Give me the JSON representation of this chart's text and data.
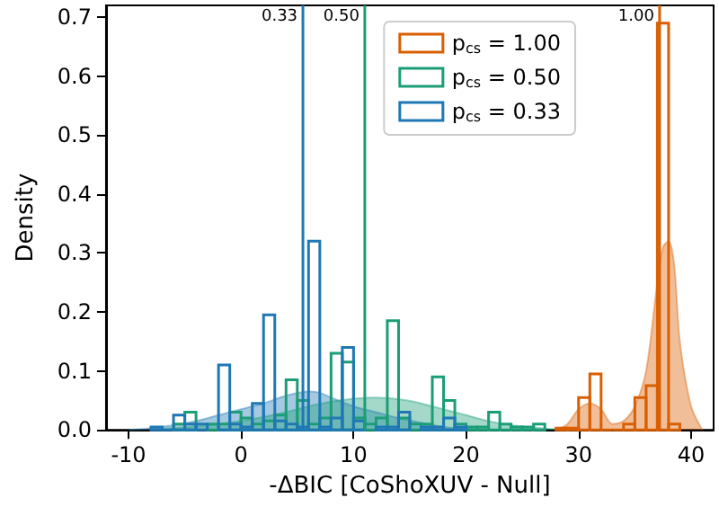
{
  "chart_data": {
    "type": "histogram",
    "xlabel": "-ΔBIC [CoShoXUV - Null]",
    "ylabel": "Density",
    "xlim": [
      -12,
      42
    ],
    "xticks": [
      -10,
      0,
      10,
      20,
      30,
      40
    ],
    "ylim": [
      0,
      0.72
    ],
    "yticks": [
      {
        "value": 0,
        "label": "0.0"
      },
      0.1,
      0.2,
      0.3,
      0.4,
      0.5,
      0.6,
      0.7
    ],
    "grid": false,
    "legend": "top right",
    "series": [
      {
        "type": "area",
        "color": "#1f78b4",
        "x": [
          -10,
          -8,
          -6,
          -4,
          -2,
          0,
          2,
          4,
          6,
          7,
          8,
          10,
          12,
          14,
          16,
          18,
          20,
          22
        ],
        "values": [
          0,
          0.003,
          0.008,
          0.015,
          0.025,
          0.035,
          0.045,
          0.058,
          0.065,
          0.063,
          0.055,
          0.04,
          0.03,
          0.02,
          0.012,
          0.005,
          0.002,
          0
        ]
      },
      {
        "type": "area",
        "color": "#1b9e77",
        "x": [
          -8,
          -6,
          -4,
          -2,
          0,
          2,
          4,
          6,
          8,
          10,
          12,
          14,
          16,
          18,
          20,
          22,
          24,
          26,
          28,
          30
        ],
        "values": [
          0,
          0.003,
          0.006,
          0.01,
          0.015,
          0.022,
          0.03,
          0.04,
          0.048,
          0.053,
          0.055,
          0.052,
          0.045,
          0.035,
          0.025,
          0.015,
          0.008,
          0.004,
          0.001,
          0
        ]
      },
      {
        "type": "area",
        "color": "#d95f02",
        "x": [
          28,
          29,
          30,
          31,
          32,
          33,
          34,
          35,
          36,
          37,
          37.5,
          38,
          38.5,
          39,
          40,
          41
        ],
        "values": [
          0,
          0.01,
          0.035,
          0.045,
          0.035,
          0.01,
          0.015,
          0.04,
          0.1,
          0.25,
          0.31,
          0.32,
          0.28,
          0.15,
          0.04,
          0
        ]
      },
      {
        "name": "p$_{cs}$ = 1.00",
        "color": "#d95f02",
        "bins": [
          28,
          29,
          30,
          31,
          32,
          33,
          34,
          35,
          36,
          37,
          38,
          39
        ],
        "values": [
          0.003,
          0.003,
          0.055,
          0.095,
          0,
          0,
          0.01,
          0.055,
          0.075,
          0.69,
          0.01
        ]
      },
      {
        "name": "p$_{cs}$ = 0.50",
        "color": "#1b9e77",
        "bins": [
          -6,
          -5,
          -4,
          -3,
          -2,
          -1,
          0,
          1,
          2,
          3,
          4,
          5,
          6,
          7,
          8,
          9,
          10,
          11,
          12,
          13,
          14,
          15,
          16,
          17,
          18,
          19,
          20,
          21,
          22,
          23,
          24,
          25,
          26,
          27
        ],
        "values": [
          0.01,
          0.03,
          null,
          0.01,
          0.01,
          0.03,
          0.02,
          0.01,
          0.015,
          0.025,
          0.085,
          0.05,
          0.01,
          0.02,
          0.13,
          0.115,
          0.02,
          0.01,
          0.02,
          0.185,
          0.02,
          0.01,
          0.01,
          0.09,
          0.05,
          0.01,
          0.005,
          0.005,
          0.03,
          0.01,
          0.005,
          0.005,
          0.01
        ]
      },
      {
        "name": "p$_{cs}$ = 0.33",
        "color": "#1f78b4",
        "bins": [
          -8,
          -7,
          -6,
          -5,
          -4,
          -3,
          -2,
          -1,
          0,
          1,
          2,
          3,
          4,
          5,
          6,
          7,
          8,
          9,
          10,
          11,
          12,
          13,
          14,
          15,
          16,
          17,
          18,
          19,
          20
        ],
        "values": [
          0.005,
          0,
          0.025,
          0.01,
          0.01,
          null,
          0.11,
          0.01,
          0.005,
          0.045,
          0.195,
          0.015,
          0.01,
          0.005,
          0.32,
          0.005,
          0.02,
          0.14,
          0.015,
          null,
          0.005,
          0.005,
          0.03,
          null,
          0.005,
          0.005,
          0.02,
          0.005
        ]
      }
    ],
    "ref_lines": [
      {
        "axis": "x",
        "value": 5.5,
        "color": "#1f78b4"
      },
      {
        "axis": "x",
        "value": 11,
        "color": "#1b9e77"
      },
      {
        "axis": "x",
        "value": 37.2,
        "color": "#d95f02"
      }
    ],
    "annotations": [
      {
        "text": "0.33",
        "x": 5.5,
        "y": 0.7
      },
      {
        "text": "0.50",
        "x": 11,
        "y": 0.7
      },
      {
        "text": "1.00",
        "x": 37.2,
        "y": 0.7
      }
    ]
  }
}
